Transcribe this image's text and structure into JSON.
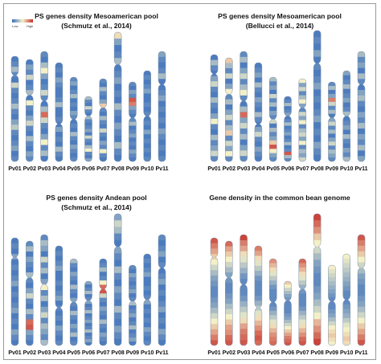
{
  "colors": {
    "low": "#3a6fbd",
    "mid": "#f3f0c8",
    "high": "#c8302a"
  },
  "legend": {
    "low": "Low",
    "high": "High"
  },
  "chromosomes": [
    "Pv01",
    "Pv02",
    "Pv03",
    "Pv04",
    "Pv05",
    "Pv06",
    "Pv07",
    "Pv08",
    "Pv09",
    "Pv10",
    "Pv11"
  ],
  "panels": [
    {
      "title_line1": "PS genes density Mesoamerican pool",
      "title_line2": "(Schmutz et al., 2014)",
      "density": [
        [
          0.05,
          0.1,
          0.3,
          0.1,
          0.05,
          0.4,
          0.1,
          0.05,
          0.1,
          0.3,
          0.1,
          0.05,
          0.2,
          0.35,
          0.1,
          0.05,
          0.1,
          0.2,
          0.05,
          0.1
        ],
        [
          0.05,
          0.2,
          0.1,
          0.4,
          0.05,
          0.1,
          0.3,
          0.05,
          0.5,
          0.1,
          0.05,
          0.2,
          0.4,
          0.1,
          0.05,
          0.3,
          0.1,
          0.05,
          0.2,
          0.1
        ],
        [
          0.1,
          0.05,
          0.3,
          0.5,
          0.2,
          0.05,
          0.1,
          0.4,
          0.1,
          0.05,
          0.3,
          0.85,
          0.4,
          0.1,
          0.05,
          0.2,
          0.5,
          0.1,
          0.3,
          0.05
        ],
        [
          0.05,
          0.1,
          0.05,
          0.2,
          0.1,
          0.05,
          0.05,
          0.1,
          0.3,
          0.05,
          0.05,
          0.1,
          0.05,
          0.2,
          0.05,
          0.1,
          0.05,
          0.3,
          0.1,
          0.05
        ],
        [
          0.1,
          0.2,
          0.05,
          0.1,
          0.3,
          0.05,
          0.1,
          0.05,
          0.2,
          0.1,
          0.05,
          0.1,
          0.05,
          0.3,
          0.1,
          0.05,
          0.2,
          0.1,
          0.05,
          0.1
        ],
        [
          0.3,
          0.1,
          0.05,
          0.4,
          0.1,
          0.05,
          0.3,
          0.1,
          0.05,
          0.1,
          0.2,
          0.05,
          0.4,
          0.1,
          0.05,
          0.3,
          0.5,
          0.1,
          0.05,
          0.2
        ],
        [
          0.1,
          0.05,
          0.3,
          0.1,
          0.05,
          0.2,
          0.6,
          0.1,
          0.05,
          0.3,
          0.1,
          0.05,
          0.4,
          0.1,
          0.05,
          0.2,
          0.1,
          0.5,
          0.1,
          0.05
        ],
        [
          0.55,
          0.2,
          0.05,
          0.1,
          0.3,
          0.05,
          0.1,
          0.2,
          0.05,
          0.1,
          0.05,
          0.3,
          0.1,
          0.05,
          0.2,
          0.1,
          0.05,
          0.3,
          0.1,
          0.05
        ],
        [
          0.1,
          0.05,
          0.2,
          0.1,
          0.9,
          0.8,
          0.2,
          0.1,
          0.05,
          0.1,
          0.3,
          0.05,
          0.1,
          0.2,
          0.05,
          0.1,
          0.05,
          0.2,
          0.1,
          0.05
        ],
        [
          0.05,
          0.1,
          0.05,
          0.1,
          0.2,
          0.05,
          0.05,
          0.1,
          0.05,
          0.1,
          0.05,
          0.1,
          0.05,
          0.2,
          0.05,
          0.1,
          0.05,
          0.1,
          0.05,
          0.1
        ],
        [
          0.2,
          0.1,
          0.05,
          0.1,
          0.3,
          0.05,
          0.05,
          0.1,
          0.2,
          0.05,
          0.1,
          0.05,
          0.1,
          0.05,
          0.2,
          0.1,
          0.05,
          0.1,
          0.05,
          0.1
        ]
      ]
    },
    {
      "title_line1": "PS genes density Mesoamerican pool",
      "title_line2": "(Bellucci et al., 2014)",
      "density": [
        [
          0.05,
          0.3,
          0.1,
          0.05,
          0.2,
          0.4,
          0.1,
          0.05,
          0.3,
          0.1,
          0.05,
          0.2,
          0.5,
          0.1,
          0.05,
          0.3,
          0.1,
          0.2,
          0.4,
          0.1
        ],
        [
          0.6,
          0.3,
          0.1,
          0.4,
          0.05,
          0.2,
          0.5,
          0.1,
          0.3,
          0.05,
          0.2,
          0.4,
          0.1,
          0.3,
          0.6,
          0.1,
          0.4,
          0.2,
          0.5,
          0.1
        ],
        [
          0.1,
          0.3,
          0.05,
          0.2,
          0.4,
          0.1,
          0.3,
          0.5,
          0.1,
          0.05,
          0.3,
          0.85,
          0.2,
          0.4,
          0.1,
          0.3,
          0.05,
          0.2,
          0.4,
          0.1
        ],
        [
          0.05,
          0.1,
          0.2,
          0.05,
          0.3,
          0.1,
          0.05,
          0.2,
          0.1,
          0.05,
          0.3,
          0.1,
          0.05,
          0.2,
          0.4,
          0.1,
          0.05,
          0.2,
          0.1,
          0.05
        ],
        [
          0.3,
          0.1,
          0.2,
          0.05,
          0.4,
          0.1,
          0.3,
          0.05,
          0.2,
          0.1,
          0.4,
          0.05,
          0.3,
          0.1,
          0.2,
          0.6,
          0.9,
          0.5,
          0.2,
          0.1
        ],
        [
          0.05,
          0.1,
          0.3,
          0.05,
          0.1,
          0.2,
          0.05,
          0.1,
          0.3,
          0.05,
          0.1,
          0.2,
          0.05,
          0.1,
          0.3,
          0.05,
          0.1,
          0.9,
          0.3,
          0.1
        ],
        [
          0.5,
          0.2,
          0.4,
          0.1,
          0.3,
          0.5,
          0.2,
          0.1,
          0.4,
          0.2,
          0.5,
          0.1,
          0.3,
          0.4,
          0.2,
          0.5,
          0.1,
          0.3,
          0.2,
          0.4
        ],
        [
          0.05,
          0.1,
          0.05,
          0.2,
          0.05,
          0.1,
          0.05,
          0.1,
          0.2,
          0.05,
          0.1,
          0.05,
          0.1,
          0.2,
          0.05,
          0.1,
          0.05,
          0.2,
          0.1,
          0.05
        ],
        [
          0.1,
          0.3,
          0.05,
          0.2,
          0.8,
          0.4,
          0.1,
          0.3,
          0.05,
          0.2,
          0.4,
          0.1,
          0.3,
          0.05,
          0.2,
          0.4,
          0.1,
          0.3,
          0.2,
          0.1
        ],
        [
          0.2,
          0.05,
          0.1,
          0.3,
          0.05,
          0.1,
          0.2,
          0.05,
          0.1,
          0.3,
          0.05,
          0.1,
          0.2,
          0.05,
          0.3,
          0.1,
          0.05,
          0.2,
          0.1,
          0.3
        ],
        [
          0.3,
          0.1,
          0.2,
          0.05,
          0.3,
          0.1,
          0.05,
          0.2,
          0.3,
          0.1,
          0.05,
          0.2,
          0.1,
          0.3,
          0.05,
          0.2,
          0.1,
          0.3,
          0.05,
          0.2
        ]
      ]
    },
    {
      "title_line1": "PS genes density Andean pool",
      "title_line2": "(Schmutz et al., 2014)",
      "density": [
        [
          0.05,
          0.1,
          0.05,
          0.2,
          0.05,
          0.1,
          0.05,
          0.1,
          0.2,
          0.05,
          0.1,
          0.05,
          0.1,
          0.2,
          0.05,
          0.1,
          0.05,
          0.2,
          0.1,
          0.05
        ],
        [
          0.1,
          0.3,
          0.05,
          0.2,
          0.1,
          0.05,
          0.3,
          0.1,
          0.05,
          0.2,
          0.4,
          0.1,
          0.05,
          0.3,
          0.1,
          0.85,
          0.9,
          0.2,
          0.1,
          0.05
        ],
        [
          0.1,
          0.3,
          0.2,
          0.05,
          0.4,
          0.1,
          0.3,
          0.05,
          0.2,
          0.5,
          0.1,
          0.3,
          0.05,
          0.2,
          0.4,
          0.1,
          0.3,
          0.2,
          0.1,
          0.3
        ],
        [
          0.05,
          0.1,
          0.05,
          0.1,
          0.2,
          0.05,
          0.05,
          0.1,
          0.05,
          0.1,
          0.2,
          0.05,
          0.1,
          0.05,
          0.1,
          0.05,
          0.2,
          0.1,
          0.05,
          0.1
        ],
        [
          0.3,
          0.1,
          0.05,
          0.2,
          0.1,
          0.05,
          0.3,
          0.1,
          0.05,
          0.2,
          0.1,
          0.05,
          0.3,
          0.1,
          0.05,
          0.2,
          0.1,
          0.3,
          0.05,
          0.1
        ],
        [
          0.2,
          0.05,
          0.1,
          0.3,
          0.05,
          0.1,
          0.2,
          0.05,
          0.1,
          0.3,
          0.05,
          0.1,
          0.2,
          0.05,
          0.1,
          0.3,
          0.05,
          0.1,
          0.2,
          0.05
        ],
        [
          0.05,
          0.1,
          0.3,
          0.05,
          0.1,
          0.5,
          0.85,
          0.9,
          0.4,
          0.1,
          0.05,
          0.2,
          0.1,
          0.05,
          0.3,
          0.1,
          0.05,
          0.2,
          0.1,
          0.05
        ],
        [
          0.2,
          0.4,
          0.3,
          0.1,
          0.05,
          0.2,
          0.1,
          0.05,
          0.3,
          0.1,
          0.05,
          0.2,
          0.1,
          0.05,
          0.3,
          0.1,
          0.05,
          0.2,
          0.1,
          0.05
        ],
        [
          0.1,
          0.05,
          0.2,
          0.1,
          0.05,
          0.1,
          0.2,
          0.05,
          0.1,
          0.3,
          0.05,
          0.1,
          0.2,
          0.05,
          0.1,
          0.3,
          0.05,
          0.1,
          0.2,
          0.05
        ],
        [
          0.05,
          0.1,
          0.05,
          0.1,
          0.2,
          0.05,
          0.05,
          0.1,
          0.05,
          0.1,
          0.2,
          0.05,
          0.1,
          0.05,
          0.1,
          0.05,
          0.2,
          0.1,
          0.05,
          0.1
        ],
        [
          0.1,
          0.05,
          0.1,
          0.2,
          0.05,
          0.1,
          0.05,
          0.1,
          0.2,
          0.05,
          0.1,
          0.05,
          0.1,
          0.2,
          0.05,
          0.1,
          0.05,
          0.2,
          0.1,
          0.05
        ]
      ]
    },
    {
      "title_line1": "Gene density in the common bean genome",
      "title_line2": "",
      "density": [
        [
          0.9,
          0.8,
          0.7,
          0.6,
          0.5,
          0.4,
          0.3,
          0.2,
          0.15,
          0.1,
          0.1,
          0.15,
          0.2,
          0.3,
          0.4,
          0.5,
          0.6,
          0.7,
          0.8,
          0.9
        ],
        [
          0.85,
          0.7,
          0.6,
          0.5,
          0.4,
          0.3,
          0.2,
          0.15,
          0.1,
          0.1,
          0.15,
          0.2,
          0.3,
          0.4,
          0.5,
          0.6,
          0.7,
          0.75,
          0.85,
          0.9
        ],
        [
          0.95,
          0.8,
          0.7,
          0.55,
          0.45,
          0.35,
          0.25,
          0.15,
          0.1,
          0.1,
          0.1,
          0.15,
          0.25,
          0.35,
          0.45,
          0.55,
          0.7,
          0.8,
          0.85,
          0.9
        ],
        [
          0.8,
          0.7,
          0.55,
          0.45,
          0.35,
          0.25,
          0.15,
          0.1,
          0.1,
          0.1,
          0.15,
          0.25,
          0.35,
          0.45,
          0.55,
          0.65,
          0.75,
          0.85,
          0.9,
          0.85
        ],
        [
          0.75,
          0.65,
          0.55,
          0.45,
          0.35,
          0.25,
          0.15,
          0.1,
          0.1,
          0.1,
          0.1,
          0.15,
          0.25,
          0.35,
          0.45,
          0.55,
          0.65,
          0.75,
          0.8,
          0.85
        ],
        [
          0.6,
          0.5,
          0.4,
          0.3,
          0.2,
          0.15,
          0.1,
          0.1,
          0.1,
          0.1,
          0.15,
          0.2,
          0.3,
          0.4,
          0.5,
          0.6,
          0.7,
          0.8,
          0.85,
          0.9
        ],
        [
          0.85,
          0.75,
          0.65,
          0.55,
          0.45,
          0.35,
          0.25,
          0.15,
          0.1,
          0.1,
          0.1,
          0.15,
          0.25,
          0.35,
          0.45,
          0.55,
          0.65,
          0.75,
          0.85,
          0.9
        ],
        [
          0.95,
          0.85,
          0.75,
          0.6,
          0.5,
          0.4,
          0.3,
          0.2,
          0.15,
          0.1,
          0.1,
          0.15,
          0.2,
          0.3,
          0.4,
          0.5,
          0.65,
          0.75,
          0.85,
          0.95
        ],
        [
          0.5,
          0.45,
          0.4,
          0.35,
          0.3,
          0.25,
          0.2,
          0.15,
          0.1,
          0.1,
          0.1,
          0.15,
          0.2,
          0.3,
          0.4,
          0.5,
          0.55,
          0.6,
          0.55,
          0.5
        ],
        [
          0.5,
          0.45,
          0.4,
          0.35,
          0.3,
          0.25,
          0.2,
          0.15,
          0.1,
          0.1,
          0.1,
          0.15,
          0.2,
          0.25,
          0.35,
          0.45,
          0.5,
          0.55,
          0.6,
          0.55
        ],
        [
          0.9,
          0.8,
          0.7,
          0.6,
          0.5,
          0.4,
          0.3,
          0.2,
          0.15,
          0.1,
          0.1,
          0.15,
          0.2,
          0.3,
          0.4,
          0.5,
          0.6,
          0.7,
          0.8,
          0.9
        ]
      ]
    }
  ]
}
